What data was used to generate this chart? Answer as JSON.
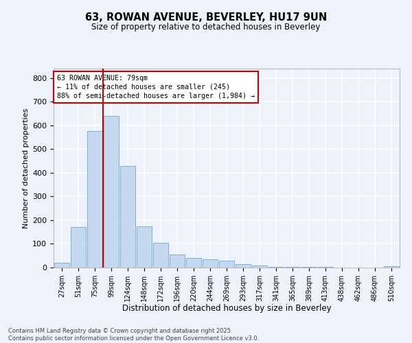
{
  "title_line1": "63, ROWAN AVENUE, BEVERLEY, HU17 9UN",
  "title_line2": "Size of property relative to detached houses in Beverley",
  "xlabel": "Distribution of detached houses by size in Beverley",
  "ylabel": "Number of detached properties",
  "bin_labels": [
    "27sqm",
    "51sqm",
    "75sqm",
    "99sqm",
    "124sqm",
    "148sqm",
    "172sqm",
    "196sqm",
    "220sqm",
    "244sqm",
    "269sqm",
    "293sqm",
    "317sqm",
    "341sqm",
    "365sqm",
    "389sqm",
    "413sqm",
    "438sqm",
    "462sqm",
    "486sqm",
    "510sqm"
  ],
  "bar_values": [
    20,
    170,
    575,
    640,
    430,
    175,
    103,
    55,
    42,
    35,
    28,
    15,
    10,
    3,
    2,
    2,
    2,
    1,
    1,
    0,
    7
  ],
  "bar_color": "#c6d9f0",
  "bar_edge_color": "#7bafd4",
  "vline_color": "#cc0000",
  "annotation_text": "63 ROWAN AVENUE: 79sqm\n← 11% of detached houses are smaller (245)\n88% of semi-detached houses are larger (1,984) →",
  "annotation_box_color": "#ffffff",
  "annotation_box_edge_color": "#cc0000",
  "ylim": [
    0,
    840
  ],
  "yticks": [
    0,
    100,
    200,
    300,
    400,
    500,
    600,
    700,
    800
  ],
  "background_color": "#eef2fa",
  "grid_color": "#ffffff",
  "footer_text": "Contains HM Land Registry data © Crown copyright and database right 2025.\nContains public sector information licensed under the Open Government Licence v3.0.",
  "fig_width": 6.0,
  "fig_height": 5.0,
  "dpi": 100
}
